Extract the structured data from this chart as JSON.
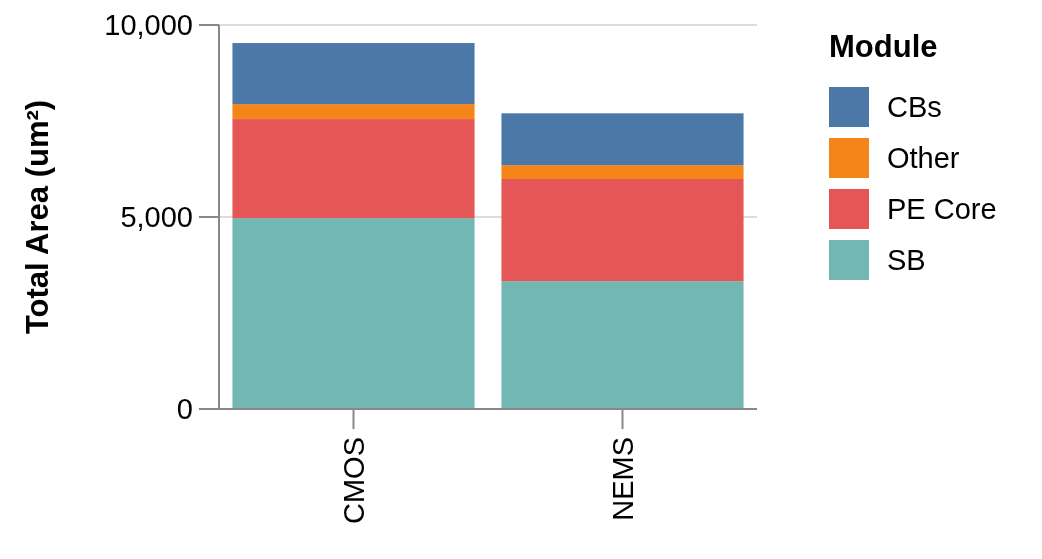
{
  "chart_data": {
    "type": "bar",
    "stacked": true,
    "ylabel": "Total Area (um²)",
    "legend_title": "Module",
    "categories": [
      "CMOS",
      "NEMS"
    ],
    "series": [
      {
        "name": "SB",
        "color": "#72b7b2",
        "values": [
          4970,
          3330
        ]
      },
      {
        "name": "PE Core",
        "color": "#e45756",
        "values": [
          2580,
          2660
        ]
      },
      {
        "name": "Other",
        "color": "#f58518",
        "values": [
          390,
          360
        ]
      },
      {
        "name": "CBs",
        "color": "#4c78a8",
        "values": [
          1590,
          1350
        ]
      }
    ],
    "ylim": [
      0,
      10000
    ],
    "yticks": [
      0,
      {
        "value": 5000,
        "label": "5,000"
      },
      {
        "value": 10000,
        "label": "10,000"
      }
    ],
    "grid": "y",
    "legend": "top right"
  }
}
